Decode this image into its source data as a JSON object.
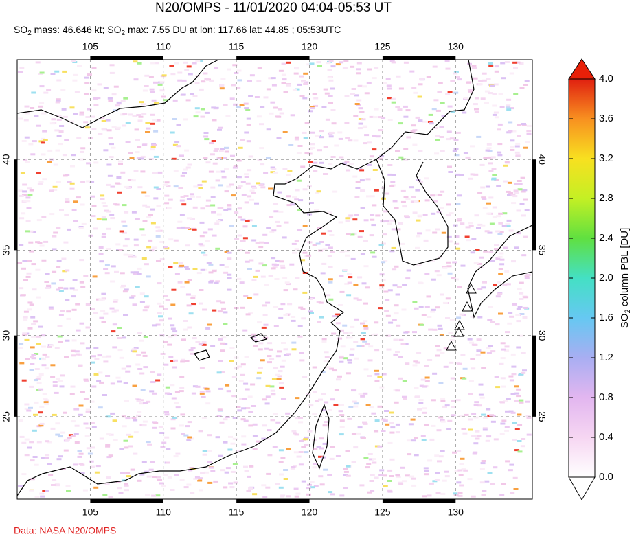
{
  "chart_data": {
    "type": "map",
    "title": "N20/OMPS - 11/01/2020 04:04-05:53 UT",
    "subtitle": [
      "SO",
      "2",
      " mass: 46.646 kt; SO",
      "2",
      " max: 7.55 DU at lon: 117.66 lat: 44.85 ; 05:53UTC"
    ],
    "xlim": [
      100,
      135.25
    ],
    "xticks": [
      105,
      110,
      115,
      120,
      125,
      130
    ],
    "ylim": [
      19.7,
      45.1
    ],
    "yticks": [
      25,
      30,
      35,
      40
    ],
    "grid": true,
    "colorbar": {
      "label": [
        "SO",
        "2",
        " column PBL [DU]"
      ],
      "lim": [
        0,
        4
      ],
      "ticks": [
        {
          "value": 0,
          "label": "0.0"
        },
        0.4,
        0.8,
        1.2,
        1.6,
        {
          "value": 2,
          "label": "2.0"
        },
        2.4,
        2.8,
        3.2,
        3.6,
        {
          "value": 4,
          "label": "4.0"
        }
      ]
    },
    "source": "Data: NASA N20/OMPS"
  }
}
